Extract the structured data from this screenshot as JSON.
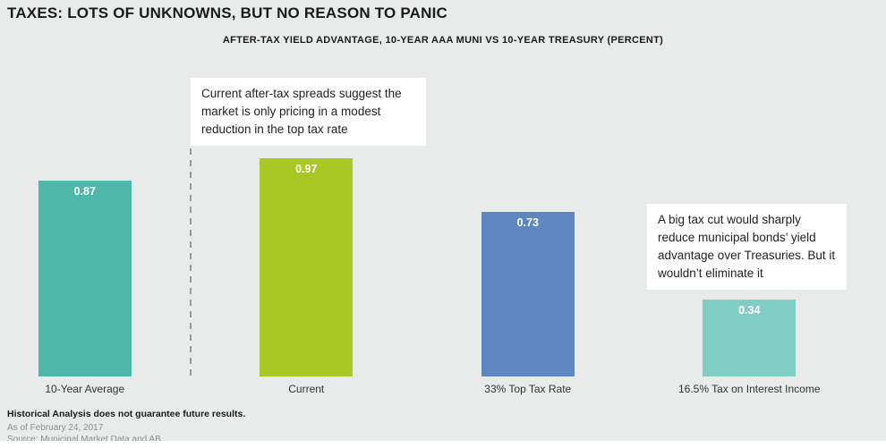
{
  "page": {
    "title": "TAXES: LOTS OF UNKNOWNS, BUT NO REASON TO PANIC",
    "footer": {
      "disclaimer": "Historical Analysis does not guarantee future results.",
      "as_of": "As of February 24, 2017",
      "source": "Source: Municipal Market Data and AB"
    }
  },
  "chart_data": {
    "type": "bar",
    "title": "AFTER-TAX YIELD ADVANTAGE, 10-YEAR AAA MUNI VS 10-YEAR TREASURY (PERCENT)",
    "categories": [
      "10-Year Average",
      "Current",
      "33% Top Tax Rate",
      "16.5% Tax on Interest Income"
    ],
    "values": [
      0.87,
      0.97,
      0.73,
      0.34
    ],
    "value_labels": [
      "0.87",
      "0.97",
      "0.73",
      "0.34"
    ],
    "bar_colors": [
      "#4fb8ab",
      "#a9c823",
      "#5c87c0",
      "#80cdc6"
    ],
    "ylim": [
      0,
      1.0
    ],
    "grid": false,
    "legend": "none",
    "annotations": [
      {
        "id": "current-spreads",
        "text": "Current after-tax spreads suggest the market is only pricing in a modest reduction in the top tax rate"
      },
      {
        "id": "big-tax-cut",
        "text": "A big tax cut would sharply reduce municipal bonds’ yield advantage over Treasuries. But it wouldn’t eliminate it"
      }
    ]
  }
}
